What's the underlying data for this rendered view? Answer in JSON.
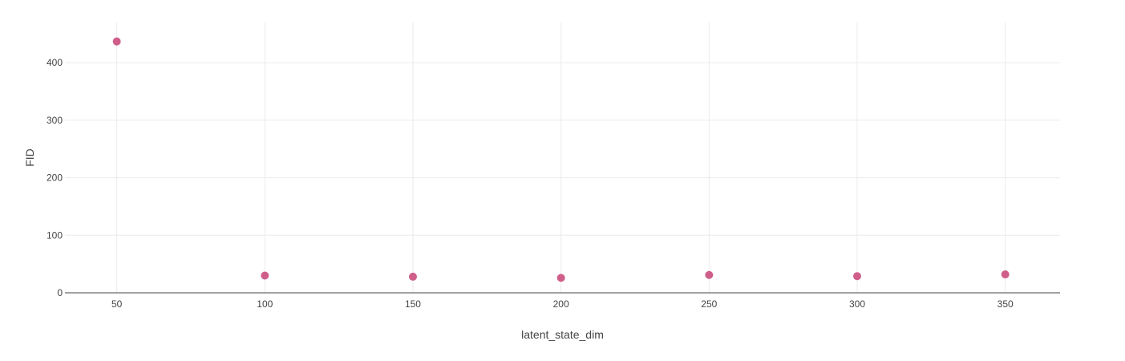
{
  "chart_data": {
    "type": "scatter",
    "title": "",
    "xlabel": "latent_state_dim",
    "ylabel": "FID",
    "x": [
      50,
      100,
      150,
      200,
      250,
      300,
      350
    ],
    "y": [
      437,
      30,
      28,
      26,
      31,
      29,
      32
    ],
    "xticks": [
      50,
      100,
      150,
      200,
      250,
      300,
      350
    ],
    "yticks": [
      0,
      100,
      200,
      300,
      400
    ],
    "xlim": [
      32.5,
      368.5
    ],
    "ylim": [
      0,
      470
    ],
    "grid": true,
    "legend": "none",
    "marker_color": "#cf5f8a",
    "grid_color": "#ebebeb",
    "axis_color": "#444444"
  }
}
